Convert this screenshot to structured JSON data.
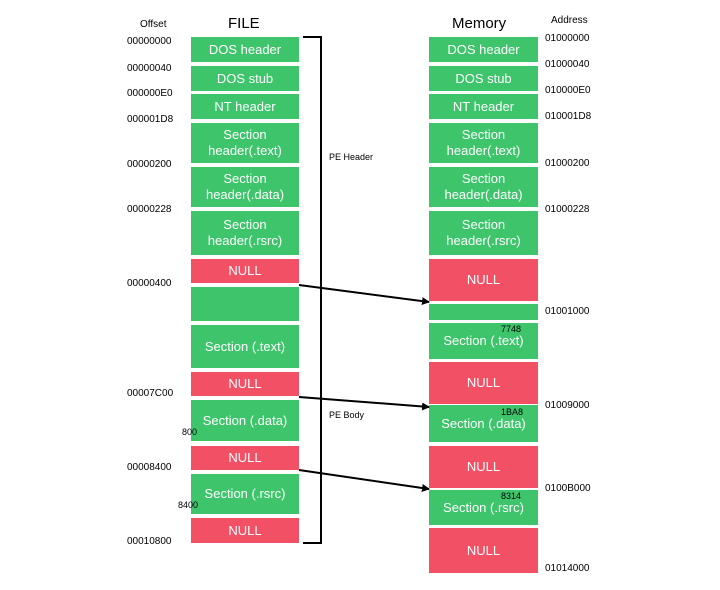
{
  "headers": {
    "offset": "Offset",
    "file": "FILE",
    "memory": "Memory",
    "address": "Address"
  },
  "offsets": [
    "00000000",
    "00000040",
    "000000E0",
    "000001D8",
    "00000200",
    "00000228",
    "00000400",
    "00007C00",
    "00008400",
    "00010800"
  ],
  "addresses": [
    "01000000",
    "01000040",
    "010000E0",
    "010001D8",
    "01000200",
    "01000228",
    "01001000",
    "01009000",
    "0100B000",
    "01014000"
  ],
  "file_blocks": [
    {
      "label": "DOS header",
      "kind": "section"
    },
    {
      "label": "DOS stub",
      "kind": "section"
    },
    {
      "label": "NT header",
      "kind": "section"
    },
    {
      "label": "Section\nheader(.text)",
      "kind": "section"
    },
    {
      "label": "Section\nheader(.data)",
      "kind": "section"
    },
    {
      "label": "Section\nheader(.rsrc)",
      "kind": "section"
    },
    {
      "label": "NULL",
      "kind": "null"
    },
    {
      "label": "",
      "kind": "section"
    },
    {
      "label": "Section (.text)",
      "kind": "section"
    },
    {
      "label": "NULL",
      "kind": "null"
    },
    {
      "label": "Section (.data)",
      "kind": "section"
    },
    {
      "label": "NULL",
      "kind": "null"
    },
    {
      "label": "Section (.rsrc)",
      "kind": "section"
    },
    {
      "label": "NULL",
      "kind": "null"
    }
  ],
  "memory_blocks": [
    {
      "label": "DOS header",
      "kind": "section"
    },
    {
      "label": "DOS stub",
      "kind": "section"
    },
    {
      "label": "NT header",
      "kind": "section"
    },
    {
      "label": "Section\nheader(.text)",
      "kind": "section"
    },
    {
      "label": "Section\nheader(.data)",
      "kind": "section"
    },
    {
      "label": "Section\nheader(.rsrc)",
      "kind": "section"
    },
    {
      "label": "NULL",
      "kind": "null"
    },
    {
      "label": "",
      "kind": "section"
    },
    {
      "label": "Section (.text)",
      "kind": "section"
    },
    {
      "label": "NULL",
      "kind": "null"
    },
    {
      "label": "Section (.data)",
      "kind": "section"
    },
    {
      "label": "NULL",
      "kind": "null"
    },
    {
      "label": "Section (.rsrc)",
      "kind": "section"
    },
    {
      "label": "NULL",
      "kind": "null"
    }
  ],
  "file_size_notes": [
    "800",
    "8400"
  ],
  "memory_size_notes": [
    "7748",
    "1BA8",
    "8314"
  ],
  "brace_labels": {
    "header": "PE Header",
    "body": "PE Body"
  },
  "colors": {
    "section": "#3ec56b",
    "null": "#f25065"
  }
}
